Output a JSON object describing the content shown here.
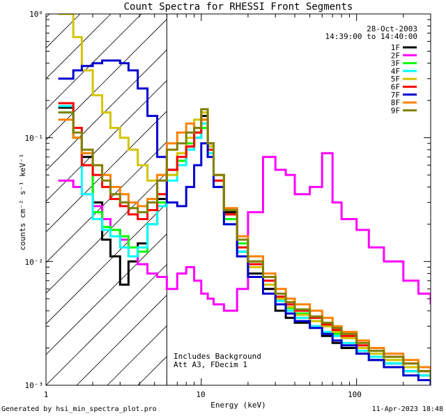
{
  "footer": {
    "generated_by": "Generated by hsi_min_spectra_plot.pro",
    "timestamp": "11-Apr-2023 18:48"
  },
  "chart_data": {
    "type": "line",
    "title": "Count Spectra for RHESSI Front Segments",
    "xlabel": "Energy (keV)",
    "ylabel": "counts cm⁻² s⁻¹ keV⁻¹",
    "xscale": "log",
    "yscale": "log",
    "xlim": [
      1,
      300
    ],
    "ylim": [
      0.001,
      1
    ],
    "x_tick_labels": [
      "1",
      "10",
      "100"
    ],
    "y_tick_labels": [
      "10⁻³",
      "10⁻²",
      "10⁻¹",
      "10⁰"
    ],
    "hatched_region_max_energy": 6,
    "legend": {
      "position": "top-right",
      "date": "28-Oct-2003",
      "time_range": "14:39:00 to 14:40:00"
    },
    "annotations": [
      "Includes Background",
      "Att A3, FDecim 1"
    ],
    "series": [
      {
        "name": "1F",
        "color": "#000000",
        "x": [
          1.2,
          1.5,
          1.7,
          2.0,
          2.3,
          2.6,
          3.0,
          3.4,
          3.9,
          4.5,
          5.2,
          6.0,
          7.0,
          8.0,
          9.0,
          10.0,
          11.0,
          12.0,
          14.0,
          17.0,
          20.0,
          25.0,
          30.0,
          35.0,
          40.0,
          50.0,
          60.0,
          70.0,
          80.0,
          100.0,
          120.0,
          150.0,
          200.0,
          250.0,
          300.0
        ],
        "values": [
          0.175,
          0.1,
          0.07,
          0.03,
          0.015,
          0.011,
          0.0065,
          0.01,
          0.014,
          0.02,
          0.032,
          0.055,
          0.065,
          0.085,
          0.1,
          0.15,
          0.09,
          0.05,
          0.025,
          0.012,
          0.008,
          0.006,
          0.004,
          0.0035,
          0.0032,
          0.003,
          0.0025,
          0.0022,
          0.002,
          0.0018,
          0.0016,
          0.0015,
          0.0013,
          0.0012,
          0.001
        ]
      },
      {
        "name": "2F",
        "color": "#ff00ff",
        "x": [
          1.2,
          1.5,
          1.7,
          2.0,
          2.3,
          2.6,
          3.0,
          3.4,
          3.9,
          4.5,
          5.2,
          6.0,
          7.0,
          8.0,
          9.0,
          10.0,
          11.0,
          12.0,
          14.0,
          17.0,
          20.0,
          25.0,
          30.0,
          35.0,
          40.0,
          50.0,
          60.0,
          70.0,
          80.0,
          100.0,
          120.0,
          150.0,
          200.0,
          250.0,
          300.0
        ],
        "values": [
          0.045,
          0.04,
          0.035,
          0.028,
          0.022,
          0.018,
          0.015,
          0.011,
          0.0095,
          0.008,
          0.0075,
          0.006,
          0.008,
          0.009,
          0.007,
          0.0055,
          0.005,
          0.0045,
          0.004,
          0.006,
          0.025,
          0.07,
          0.055,
          0.05,
          0.035,
          0.04,
          0.075,
          0.03,
          0.022,
          0.018,
          0.013,
          0.01,
          0.007,
          0.0055,
          0.0045
        ]
      },
      {
        "name": "3F",
        "color": "#00ff00",
        "x": [
          1.2,
          1.5,
          1.7,
          2.0,
          2.3,
          2.6,
          3.0,
          3.4,
          3.9,
          4.5,
          5.2,
          6.0,
          7.0,
          8.0,
          9.0,
          10.0,
          11.0,
          12.0,
          14.0,
          17.0,
          20.0,
          25.0,
          30.0,
          35.0,
          40.0,
          50.0,
          60.0,
          70.0,
          80.0,
          100.0,
          120.0,
          150.0,
          200.0,
          250.0,
          300.0
        ],
        "values": [
          0.16,
          0.1,
          0.06,
          0.025,
          0.019,
          0.018,
          0.016,
          0.013,
          0.012,
          0.02,
          0.03,
          0.05,
          0.065,
          0.09,
          0.11,
          0.12,
          0.085,
          0.045,
          0.022,
          0.014,
          0.01,
          0.0075,
          0.005,
          0.0042,
          0.0038,
          0.0033,
          0.003,
          0.0026,
          0.0024,
          0.002,
          0.0018,
          0.0016,
          0.0014,
          0.0013,
          0.0011
        ]
      },
      {
        "name": "4F",
        "color": "#00ffff",
        "x": [
          1.2,
          1.5,
          1.7,
          2.0,
          2.3,
          2.6,
          3.0,
          3.4,
          3.9,
          4.5,
          5.2,
          6.0,
          7.0,
          8.0,
          9.0,
          10.0,
          11.0,
          12.0,
          14.0,
          17.0,
          20.0,
          25.0,
          30.0,
          35.0,
          40.0,
          50.0,
          60.0,
          70.0,
          80.0,
          100.0,
          120.0,
          150.0,
          200.0,
          250.0,
          300.0
        ],
        "values": [
          0.18,
          0.12,
          0.035,
          0.022,
          0.018,
          0.016,
          0.013,
          0.011,
          0.013,
          0.02,
          0.028,
          0.045,
          0.06,
          0.08,
          0.1,
          0.13,
          0.075,
          0.04,
          0.02,
          0.012,
          0.009,
          0.0065,
          0.0048,
          0.004,
          0.0035,
          0.003,
          0.0027,
          0.0025,
          0.0022,
          0.0019,
          0.0017,
          0.0015,
          0.0013,
          0.0012,
          0.001
        ]
      },
      {
        "name": "5F",
        "color": "#d4c400",
        "x": [
          1.2,
          1.5,
          1.7,
          2.0,
          2.3,
          2.6,
          3.0,
          3.4,
          3.9,
          4.5,
          5.2,
          6.0,
          7.0,
          8.0,
          9.0,
          10.0,
          11.0,
          12.0,
          14.0,
          17.0,
          20.0,
          25.0,
          30.0,
          35.0,
          40.0,
          50.0,
          60.0,
          70.0,
          80.0,
          100.0,
          120.0,
          150.0,
          200.0,
          250.0,
          300.0
        ],
        "values": [
          1.0,
          0.65,
          0.35,
          0.22,
          0.16,
          0.12,
          0.1,
          0.08,
          0.06,
          0.045,
          0.035,
          0.05,
          0.075,
          0.1,
          0.14,
          0.16,
          0.085,
          0.045,
          0.024,
          0.013,
          0.009,
          0.0065,
          0.005,
          0.0043,
          0.0037,
          0.0033,
          0.003,
          0.0027,
          0.0024,
          0.002,
          0.0018,
          0.0016,
          0.0014,
          0.0013,
          0.0011
        ]
      },
      {
        "name": "6F",
        "color": "#ff0000",
        "x": [
          1.2,
          1.5,
          1.7,
          2.0,
          2.3,
          2.6,
          3.0,
          3.4,
          3.9,
          4.5,
          5.2,
          6.0,
          7.0,
          8.0,
          9.0,
          10.0,
          11.0,
          12.0,
          14.0,
          17.0,
          20.0,
          25.0,
          30.0,
          35.0,
          40.0,
          50.0,
          60.0,
          70.0,
          80.0,
          100.0,
          120.0,
          150.0,
          200.0,
          250.0,
          300.0
        ],
        "values": [
          0.19,
          0.12,
          0.06,
          0.05,
          0.04,
          0.032,
          0.028,
          0.024,
          0.022,
          0.026,
          0.035,
          0.055,
          0.07,
          0.085,
          0.11,
          0.14,
          0.08,
          0.045,
          0.024,
          0.013,
          0.0095,
          0.007,
          0.0052,
          0.0045,
          0.004,
          0.0035,
          0.0031,
          0.0028,
          0.0025,
          0.0021,
          0.0019,
          0.0017,
          0.0015,
          0.0013,
          0.0011
        ]
      },
      {
        "name": "7F",
        "color": "#0000d0",
        "x": [
          1.2,
          1.5,
          1.7,
          2.0,
          2.3,
          2.6,
          3.0,
          3.4,
          3.9,
          4.5,
          5.2,
          6.0,
          7.0,
          8.0,
          9.0,
          10.0,
          11.0,
          12.0,
          14.0,
          17.0,
          20.0,
          25.0,
          30.0,
          35.0,
          40.0,
          50.0,
          60.0,
          70.0,
          80.0,
          100.0,
          120.0,
          150.0,
          200.0,
          250.0,
          300.0
        ],
        "values": [
          0.3,
          0.35,
          0.38,
          0.4,
          0.42,
          0.42,
          0.4,
          0.35,
          0.25,
          0.15,
          0.07,
          0.03,
          0.028,
          0.04,
          0.06,
          0.09,
          0.07,
          0.04,
          0.02,
          0.011,
          0.0075,
          0.0055,
          0.0045,
          0.0038,
          0.0033,
          0.0029,
          0.0026,
          0.0023,
          0.0021,
          0.0018,
          0.0016,
          0.0014,
          0.0012,
          0.0011,
          0.001
        ]
      },
      {
        "name": "8F",
        "color": "#ff8000",
        "x": [
          1.2,
          1.5,
          1.7,
          2.0,
          2.3,
          2.6,
          3.0,
          3.4,
          3.9,
          4.5,
          5.2,
          6.0,
          7.0,
          8.0,
          9.0,
          10.0,
          11.0,
          12.0,
          14.0,
          17.0,
          20.0,
          25.0,
          30.0,
          35.0,
          40.0,
          50.0,
          60.0,
          70.0,
          80.0,
          100.0,
          120.0,
          150.0,
          200.0,
          250.0,
          300.0
        ],
        "values": [
          0.14,
          0.1,
          0.075,
          0.06,
          0.05,
          0.04,
          0.035,
          0.03,
          0.028,
          0.032,
          0.05,
          0.09,
          0.11,
          0.13,
          0.12,
          0.14,
          0.09,
          0.05,
          0.027,
          0.016,
          0.011,
          0.008,
          0.006,
          0.005,
          0.0045,
          0.004,
          0.0035,
          0.003,
          0.0027,
          0.0023,
          0.002,
          0.0018,
          0.0016,
          0.0014,
          0.0012
        ]
      },
      {
        "name": "9F",
        "color": "#808000",
        "x": [
          1.2,
          1.5,
          1.7,
          2.0,
          2.3,
          2.6,
          3.0,
          3.4,
          3.9,
          4.5,
          5.2,
          6.0,
          7.0,
          8.0,
          9.0,
          10.0,
          11.0,
          12.0,
          14.0,
          17.0,
          20.0,
          25.0,
          30.0,
          35.0,
          40.0,
          50.0,
          60.0,
          70.0,
          80.0,
          100.0,
          120.0,
          150.0,
          200.0,
          250.0,
          300.0
        ],
        "values": [
          0.16,
          0.11,
          0.08,
          0.06,
          0.045,
          0.035,
          0.03,
          0.027,
          0.025,
          0.03,
          0.045,
          0.08,
          0.09,
          0.11,
          0.12,
          0.17,
          0.09,
          0.05,
          0.026,
          0.015,
          0.01,
          0.0075,
          0.0055,
          0.0047,
          0.0041,
          0.0036,
          0.0032,
          0.0029,
          0.0026,
          0.0022,
          0.0019,
          0.0017,
          0.0015,
          0.0013,
          0.0011
        ]
      }
    ]
  }
}
